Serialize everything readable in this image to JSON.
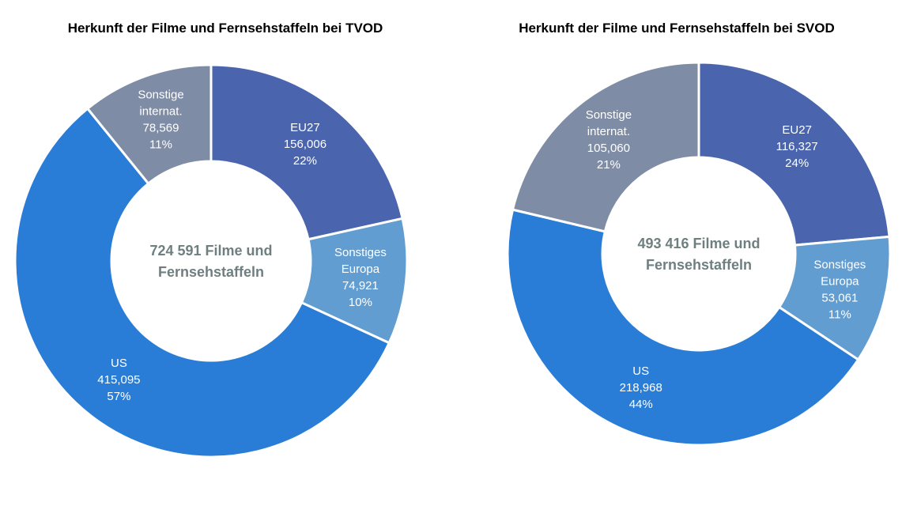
{
  "chart_data": [
    {
      "type": "pie",
      "title": "Herkunft der Filme und Fernsehstaffeln bei TVOD",
      "center_label": [
        "724 591 Filme und",
        "Fernsehstaffeln"
      ],
      "slices": [
        {
          "name": "EU27",
          "value": 156006,
          "value_label": "156,006",
          "percent_label": "22%",
          "color": "#4a65ae",
          "label_lines": [
            "EU27"
          ]
        },
        {
          "name": "Sonstiges Europa",
          "value": 74921,
          "value_label": "74,921",
          "percent_label": "10%",
          "color": "#629dd2",
          "label_lines": [
            "Sonstiges",
            "Europa"
          ]
        },
        {
          "name": "US",
          "value": 415095,
          "value_label": "415,095",
          "percent_label": "57%",
          "color": "#2a7dd6",
          "label_lines": [
            "US"
          ]
        },
        {
          "name": "Sonstige internat.",
          "value": 78569,
          "value_label": "78,569",
          "percent_label": "11%",
          "color": "#7f8ca5",
          "label_lines": [
            "Sonstige",
            "internat."
          ]
        }
      ]
    },
    {
      "type": "pie",
      "title": "Herkunft der Filme und Fernsehstaffeln bei SVOD",
      "center_label": [
        "493 416 Filme und",
        "Fernsehstaffeln"
      ],
      "slices": [
        {
          "name": "EU27",
          "value": 116327,
          "value_label": "116,327",
          "percent_label": "24%",
          "color": "#4a65ae",
          "label_lines": [
            "EU27"
          ]
        },
        {
          "name": "Sonstiges Europa",
          "value": 53061,
          "value_label": "53,061",
          "percent_label": "11%",
          "color": "#629dd2",
          "label_lines": [
            "Sonstiges",
            "Europa"
          ]
        },
        {
          "name": "US",
          "value": 218968,
          "value_label": "218,968",
          "percent_label": "44%",
          "color": "#2a7dd6",
          "label_lines": [
            "US"
          ]
        },
        {
          "name": "Sonstige internat.",
          "value": 105060,
          "value_label": "105,060",
          "percent_label": "21%",
          "color": "#7f8ca5",
          "label_lines": [
            "Sonstige",
            "internat."
          ]
        }
      ]
    }
  ]
}
